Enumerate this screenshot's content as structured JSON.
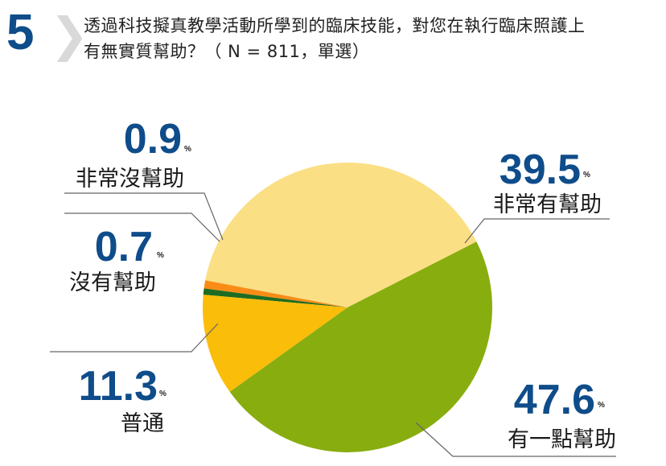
{
  "header": {
    "question_number": "5",
    "question_lines": [
      "透過科技擬真教學活動所學到的臨床技能，對您在執行臨床照護上",
      "有無實質幫助？（ N = 811，單選）"
    ]
  },
  "chart_data": {
    "type": "pie",
    "title": "透過科技擬真教學活動所學到的臨床技能，對您在執行臨床照護上有無實質幫助？（ N = 811，單選）",
    "unit": "%",
    "start_angle_deg": 27,
    "direction": "counterclockwise",
    "slices": [
      {
        "label": "非常有幫助",
        "value": 39.5,
        "display": "39.5",
        "color": "#fbdf84"
      },
      {
        "label": "非常沒幫助",
        "value": 0.9,
        "display": "0.9",
        "color": "#f98c16"
      },
      {
        "label": "沒有幫助",
        "value": 0.7,
        "display": "0.7",
        "color": "#1e6c21"
      },
      {
        "label": "普通",
        "value": 11.3,
        "display": "11.3",
        "color": "#fabd0a"
      },
      {
        "label": "有一點幫助",
        "value": 47.6,
        "display": "47.6",
        "color": "#88ad0f"
      }
    ]
  }
}
